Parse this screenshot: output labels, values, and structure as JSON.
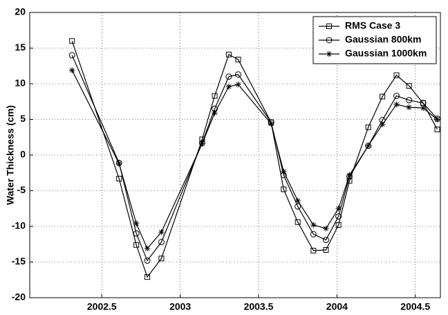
{
  "chart_data": {
    "type": "line",
    "y_label": "Water Thickness (cm)",
    "x": [
      2002.31,
      2002.61,
      2002.72,
      2002.79,
      2002.88,
      2003.14,
      2003.22,
      2003.31,
      2003.37,
      2003.58,
      2003.66,
      2003.75,
      2003.85,
      2003.93,
      2004.01,
      2004.08,
      2004.2,
      2004.29,
      2004.38,
      2004.46,
      2004.55,
      2004.64
    ],
    "series": [
      {
        "name": "RMS Case 3",
        "color": "#000000",
        "marker": "square",
        "values": [
          16,
          -3.3,
          -12.6,
          -17.1,
          -14.5,
          2.2,
          8.3,
          14.1,
          13.4,
          4.6,
          -4.8,
          -9.4,
          -13.4,
          -13.3,
          -9.8,
          -3.6,
          3.9,
          8.2,
          11.2,
          9.7,
          7.3,
          3.6
        ]
      },
      {
        "name": "Gaussian 800km",
        "color": "#000000",
        "marker": "circle",
        "values": [
          14,
          -1.1,
          -11,
          -14.8,
          -12.2,
          1.7,
          6.5,
          11,
          11.3,
          4.6,
          -2.8,
          -7.2,
          -11.1,
          -11.9,
          -8.6,
          -3,
          1.3,
          4.9,
          8.3,
          7.7,
          7.3,
          5.1
        ]
      },
      {
        "name": "Gaussian 1000km",
        "color": "#000000",
        "marker": "star",
        "values": [
          11.9,
          -1.2,
          -9.6,
          -13.1,
          -10.8,
          1.6,
          5.9,
          9.6,
          9.9,
          4.4,
          -2.3,
          -6.4,
          -9.8,
          -10.3,
          -7.5,
          -2.8,
          1.3,
          4.3,
          7.1,
          6.7,
          6.6,
          5
        ]
      }
    ],
    "xlim": [
      2002.04,
      2004.66
    ],
    "xticks": [
      2002.5,
      2003,
      2003.5,
      2004,
      2004.5
    ],
    "ylim": [
      -20,
      20
    ],
    "yticks": [
      -20,
      -15,
      -10,
      -5,
      0,
      5,
      10,
      15,
      20
    ],
    "grid": true,
    "legend": "upper right"
  }
}
